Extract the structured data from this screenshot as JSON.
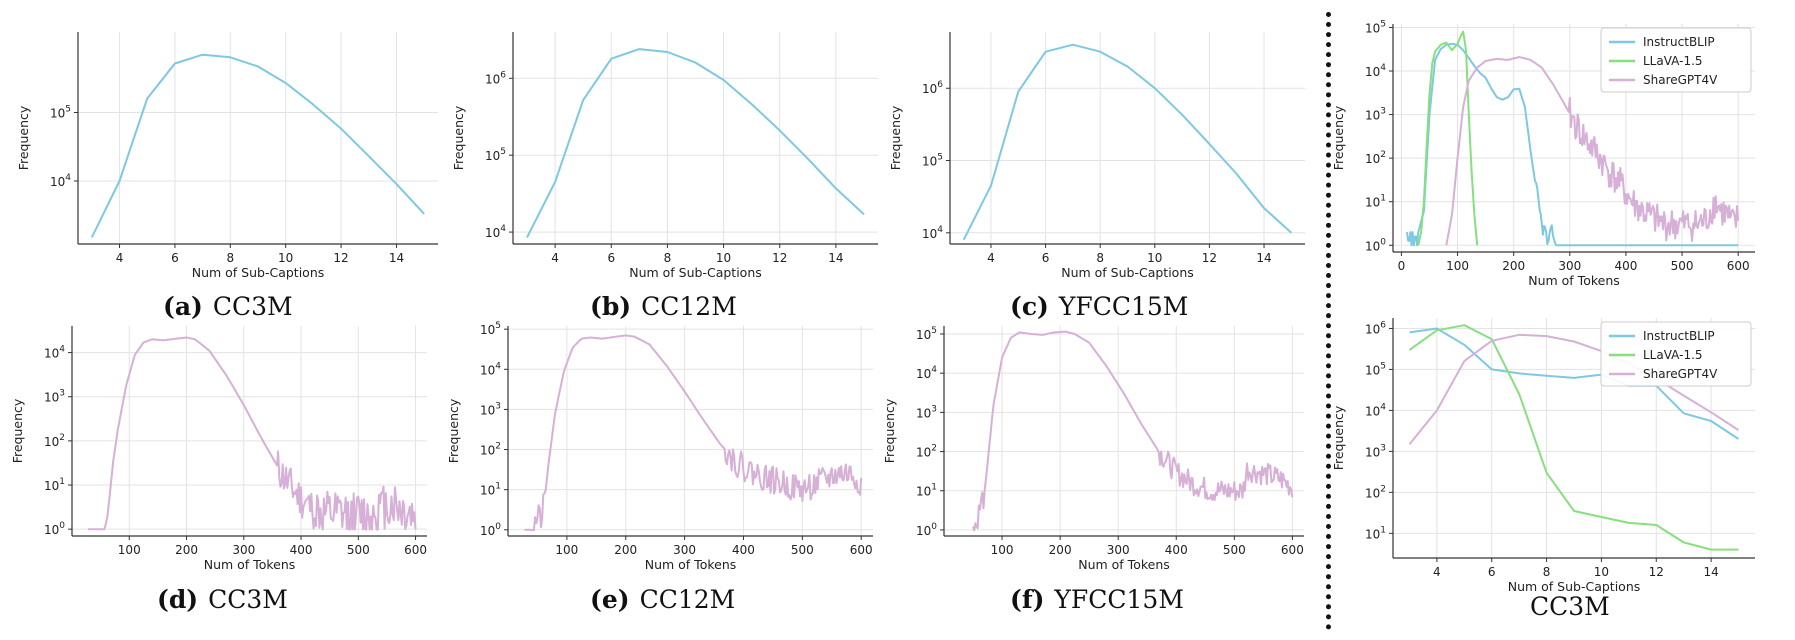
{
  "colors": {
    "instructblip": "#7ec8e3",
    "llava": "#86e07e",
    "sharegpt4v": "#d6b0d6",
    "single": "#7ec8e3",
    "tokens": "#d6b0d6"
  },
  "captions": [
    {
      "letter": "(a)",
      "text": "CC3M"
    },
    {
      "letter": "(b)",
      "text": "CC12M"
    },
    {
      "letter": "(c)",
      "text": "YFCC15M"
    },
    {
      "letter": "(d)",
      "text": "CC3M"
    },
    {
      "letter": "(e)",
      "text": "CC12M"
    },
    {
      "letter": "(f)",
      "text": "YFCC15M"
    },
    {
      "letter": "",
      "text": "CC3M"
    }
  ],
  "chart_data": [
    {
      "id": "a",
      "type": "line",
      "xlabel": "Num of Sub-Captions",
      "ylabel": "Frequency",
      "xlim": [
        2.5,
        15.5
      ],
      "xticks": [
        4,
        6,
        8,
        10,
        12,
        14
      ],
      "ylog": true,
      "ylim": [
        1200,
        1500000
      ],
      "yticks": [
        10000,
        100000
      ],
      "ytick_labels": [
        "10^4",
        "10^5"
      ],
      "series": [
        {
          "color": "single",
          "x": [
            3,
            4,
            5,
            6,
            7,
            8,
            9,
            10,
            11,
            12,
            13,
            14,
            15
          ],
          "y": [
            1500,
            10000,
            160000,
            520000,
            700000,
            640000,
            470000,
            270000,
            130000,
            58000,
            23000,
            9000,
            3300
          ]
        }
      ]
    },
    {
      "id": "b",
      "type": "line",
      "xlabel": "Num of Sub-Captions",
      "ylabel": "Frequency",
      "xlim": [
        2.5,
        15.5
      ],
      "xticks": [
        4,
        6,
        8,
        10,
        12,
        14
      ],
      "ylog": true,
      "ylim": [
        7000,
        4000000
      ],
      "yticks": [
        10000,
        100000,
        1000000
      ],
      "ytick_labels": [
        "10^4",
        "10^5",
        "10^6"
      ],
      "series": [
        {
          "color": "single",
          "x": [
            3,
            4,
            5,
            6,
            7,
            8,
            9,
            10,
            11,
            12,
            13,
            14,
            15
          ],
          "y": [
            8500,
            45000,
            520000,
            1800000,
            2400000,
            2200000,
            1600000,
            950000,
            460000,
            210000,
            90000,
            37000,
            17000
          ]
        }
      ]
    },
    {
      "id": "c",
      "type": "line",
      "xlabel": "Num of Sub-Captions",
      "ylabel": "Frequency",
      "xlim": [
        2.5,
        15.5
      ],
      "xticks": [
        4,
        6,
        8,
        10,
        12,
        14
      ],
      "ylog": true,
      "ylim": [
        7000,
        6000000
      ],
      "yticks": [
        10000,
        100000,
        1000000
      ],
      "ytick_labels": [
        "10^4",
        "10^5",
        "10^6"
      ],
      "series": [
        {
          "color": "single",
          "x": [
            3,
            4,
            5,
            6,
            7,
            8,
            9,
            10,
            11,
            12,
            13,
            14,
            15
          ],
          "y": [
            8000,
            45000,
            900000,
            3200000,
            4000000,
            3200000,
            2000000,
            1000000,
            430000,
            170000,
            65000,
            22000,
            10000
          ]
        }
      ]
    },
    {
      "id": "d",
      "type": "line",
      "xlabel": "Num of Tokens",
      "ylabel": "Frequency",
      "xlim": [
        0,
        620
      ],
      "xticks": [
        100,
        200,
        300,
        400,
        500,
        600
      ],
      "ylog": true,
      "ylim": [
        0.7,
        40000
      ],
      "yticks": [
        1,
        10,
        100,
        1000,
        10000
      ],
      "ytick_labels": [
        "10^0",
        "10^1",
        "10^2",
        "10^3",
        "10^4"
      ],
      "noisy": true,
      "noise": [
        {
          "from": 360,
          "to": 420,
          "amp": 0.45,
          "seed": 11
        },
        {
          "from": 420,
          "to": 600,
          "amp": 0.55,
          "seed": 12
        }
      ],
      "series": [
        {
          "color": "tokens",
          "x": [
            28,
            50,
            57,
            62,
            66,
            72,
            80,
            95,
            110,
            125,
            140,
            160,
            180,
            200,
            215,
            240,
            270,
            300,
            330,
            360,
            380,
            400,
            420,
            440,
            460,
            480,
            500,
            520,
            540,
            560,
            580,
            600
          ],
          "y": [
            1,
            1,
            1,
            2,
            6,
            35,
            180,
            1900,
            9000,
            17000,
            20000,
            19000,
            20500,
            22000,
            20000,
            11000,
            3000,
            650,
            120,
            25,
            10,
            5,
            3,
            2,
            2,
            2,
            2,
            2,
            3,
            4,
            2.5,
            2
          ]
        }
      ]
    },
    {
      "id": "e",
      "type": "line",
      "xlabel": "Num of Tokens",
      "ylabel": "Frequency",
      "xlim": [
        0,
        620
      ],
      "xticks": [
        100,
        200,
        300,
        400,
        500,
        600
      ],
      "ylog": true,
      "ylim": [
        0.7,
        120000
      ],
      "yticks": [
        1,
        10,
        100,
        1000,
        10000,
        100000
      ],
      "ytick_labels": [
        "10^0",
        "10^1",
        "10^2",
        "10^3",
        "10^4",
        "10^5"
      ],
      "noisy": true,
      "noise": [
        {
          "from": 40,
          "to": 62,
          "amp": 0.35,
          "seed": 21
        },
        {
          "from": 370,
          "to": 600,
          "amp": 0.35,
          "seed": 22
        }
      ],
      "series": [
        {
          "color": "tokens",
          "x": [
            28,
            40,
            50,
            58,
            64,
            70,
            80,
            95,
            110,
            125,
            140,
            160,
            180,
            200,
            215,
            240,
            270,
            300,
            330,
            360,
            390,
            420,
            460,
            500,
            530,
            560,
            580,
            600
          ],
          "y": [
            1,
            1,
            2,
            2,
            10,
            60,
            800,
            9000,
            35000,
            58000,
            62000,
            58000,
            64000,
            70000,
            65000,
            42000,
            12000,
            2800,
            600,
            140,
            45,
            25,
            15,
            10,
            15,
            25,
            25,
            15
          ]
        }
      ]
    },
    {
      "id": "f",
      "type": "line",
      "xlabel": "Num of Tokens",
      "ylabel": "Frequency",
      "xlim": [
        0,
        620
      ],
      "xticks": [
        100,
        200,
        300,
        400,
        500,
        600
      ],
      "ylog": true,
      "ylim": [
        0.7,
        160000
      ],
      "yticks": [
        1,
        10,
        100,
        1000,
        10000,
        100000
      ],
      "ytick_labels": [
        "10^0",
        "10^1",
        "10^2",
        "10^3",
        "10^4",
        "10^5"
      ],
      "noisy": true,
      "noise": [
        {
          "from": 50,
          "to": 68,
          "amp": 0.35,
          "seed": 31
        },
        {
          "from": 370,
          "to": 600,
          "amp": 0.3,
          "seed": 32
        }
      ],
      "series": [
        {
          "color": "tokens",
          "x": [
            50,
            55,
            62,
            68,
            75,
            85,
            100,
            115,
            130,
            150,
            170,
            190,
            210,
            225,
            250,
            280,
            310,
            340,
            370,
            400,
            430,
            460,
            490,
            515,
            522,
            540,
            560,
            580,
            600
          ],
          "y": [
            1,
            2,
            3,
            5,
            50,
            1500,
            25000,
            80000,
            110000,
            100000,
            95000,
            110000,
            115000,
            100000,
            60000,
            15000,
            3000,
            500,
            100,
            30,
            15,
            10,
            10,
            10,
            35,
            30,
            25,
            20,
            12
          ]
        }
      ]
    },
    {
      "id": "g",
      "type": "line",
      "xlabel": "Num of Tokens",
      "ylabel": "Frequency",
      "xlim": [
        -15,
        630
      ],
      "xticks": [
        0,
        100,
        200,
        300,
        400,
        500,
        600
      ],
      "ylog": true,
      "ylim": [
        0.7,
        120000
      ],
      "yticks": [
        1,
        10,
        100,
        1000,
        10000,
        100000
      ],
      "ytick_labels": [
        "10^0",
        "10^1",
        "10^2",
        "10^3",
        "10^4",
        "10^5"
      ],
      "legend": "top-right",
      "series": [
        {
          "name": "InstructBLIP",
          "color": "instructblip",
          "x": [
            10,
            13,
            16,
            18,
            20,
            22,
            25,
            28,
            30,
            40,
            50,
            60,
            70,
            80,
            90,
            100,
            110,
            120,
            130,
            140,
            150,
            160,
            170,
            180,
            190,
            200,
            210,
            220,
            230,
            240,
            250,
            256,
            262,
            268,
            275,
            280,
            290,
            600
          ],
          "y": [
            2,
            1,
            2,
            1,
            2,
            1,
            2,
            1,
            2,
            6,
            1000,
            18000,
            32000,
            40000,
            42000,
            40000,
            30000,
            20000,
            13000,
            9000,
            7000,
            4000,
            2500,
            2200,
            2500,
            3800,
            3900,
            1500,
            150,
            20,
            3,
            2,
            1,
            2,
            1,
            1,
            1,
            1
          ]
        },
        {
          "name": "LLaVA-1.5",
          "color": "llava",
          "x": [
            30,
            35,
            40,
            45,
            50,
            55,
            60,
            70,
            80,
            90,
            100,
            105,
            110,
            115,
            120,
            125,
            130,
            135
          ],
          "y": [
            1,
            2,
            10,
            200,
            3000,
            15000,
            28000,
            40000,
            45000,
            30000,
            42000,
            60000,
            80000,
            30000,
            1000,
            50,
            5,
            1
          ]
        },
        {
          "name": "ShareGPT4V",
          "color": "sharegpt4v",
          "x": [
            80,
            90,
            100,
            110,
            120,
            135,
            150,
            170,
            190,
            210,
            230,
            250,
            270,
            290,
            310,
            330,
            350,
            370,
            390,
            410,
            430,
            450,
            470,
            490,
            510,
            530,
            545,
            550,
            560,
            570,
            580,
            590,
            600
          ],
          "y": [
            1,
            5,
            100,
            1500,
            6000,
            12000,
            17000,
            19000,
            18000,
            21000,
            18000,
            12000,
            5000,
            1800,
            600,
            250,
            120,
            50,
            25,
            10,
            6,
            4,
            3,
            3,
            3,
            3,
            4,
            6,
            10,
            6,
            5,
            3,
            4
          ]
        }
      ],
      "noisy": true,
      "noise": [
        {
          "series": 2,
          "from": 300,
          "to": 600,
          "amp": 0.38,
          "seed": 41
        },
        {
          "series": 0,
          "from": 240,
          "to": 268,
          "amp": 0.2,
          "seed": 42
        }
      ]
    },
    {
      "id": "h",
      "type": "line",
      "xlabel": "Num of Sub-Captions",
      "ylabel": "Frequency",
      "xlim": [
        2.4,
        15.6
      ],
      "xticks": [
        4,
        6,
        8,
        10,
        12,
        14
      ],
      "ylog": true,
      "ylim": [
        2.5,
        1800000
      ],
      "yticks": [
        10,
        100,
        1000,
        10000,
        100000,
        1000000
      ],
      "ytick_labels": [
        "10^1",
        "10^2",
        "10^3",
        "10^4",
        "10^5",
        "10^6"
      ],
      "legend": "top-right",
      "series": [
        {
          "name": "InstructBLIP",
          "color": "instructblip",
          "x": [
            3,
            4,
            5,
            6,
            7,
            8,
            9,
            10,
            11,
            12,
            13,
            14,
            15
          ],
          "y": [
            800000,
            1000000,
            400000,
            100000,
            80000,
            70000,
            62000,
            75000,
            40000,
            40000,
            8500,
            5500,
            2000
          ]
        },
        {
          "name": "LLaVA-1.5",
          "color": "llava",
          "x": [
            3,
            4,
            5,
            6,
            7,
            8,
            9,
            10,
            11,
            12,
            13,
            14,
            15
          ],
          "y": [
            300000,
            900000,
            1200000,
            550000,
            25000,
            300,
            35,
            25,
            18,
            16,
            6,
            4,
            4
          ]
        },
        {
          "name": "ShareGPT4V",
          "color": "sharegpt4v",
          "x": [
            3,
            4,
            5,
            6,
            7,
            8,
            9,
            10,
            11,
            12,
            13,
            14,
            15
          ],
          "y": [
            1500,
            10000,
            160000,
            500000,
            700000,
            650000,
            480000,
            280000,
            140000,
            60000,
            23000,
            9000,
            3300
          ]
        }
      ]
    }
  ]
}
